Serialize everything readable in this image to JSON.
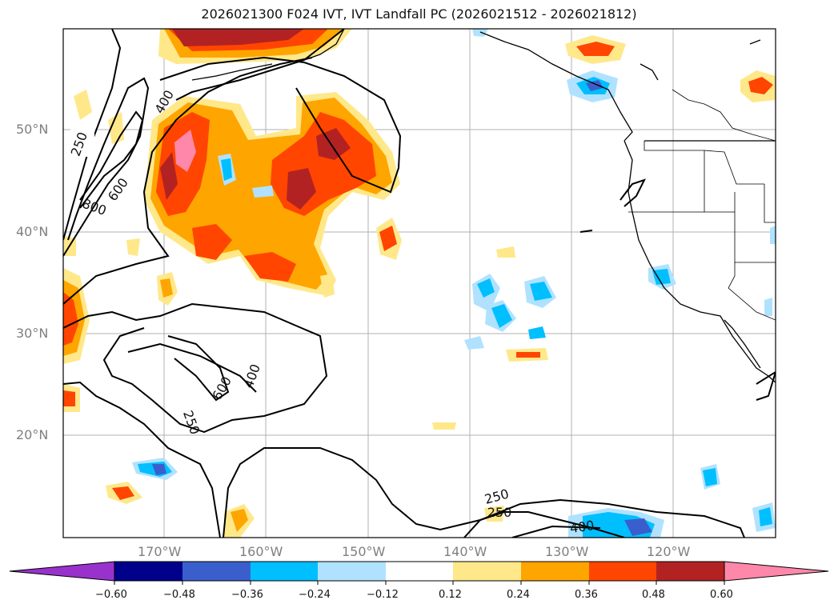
{
  "title": "2026021300 F024 IVT, IVT Landfall PC (2026021512 - 2026021812)",
  "lat_labels": [
    "50°N",
    "40°N",
    "30°N",
    "20°N"
  ],
  "lon_labels": [
    "170°W",
    "160°W",
    "150°W",
    "140°W",
    "130°W",
    "120°W"
  ],
  "contour_labels": [
    "250",
    "400",
    "600",
    "800",
    "400",
    "600",
    "250",
    "250",
    "250",
    "400"
  ],
  "colorbar": {
    "ticks": [
      "−0.60",
      "−0.48",
      "−0.36",
      "−0.24",
      "−0.12",
      "0.12",
      "0.24",
      "0.36",
      "0.48",
      "0.60"
    ],
    "colors": [
      "#9932cc",
      "#00008b",
      "#3a5fcd",
      "#00bfff",
      "#b0e2ff",
      "#ffffff",
      "#ffe88a",
      "#ffa500",
      "#ff4500",
      "#b22222",
      "#ff88aa"
    ]
  }
}
